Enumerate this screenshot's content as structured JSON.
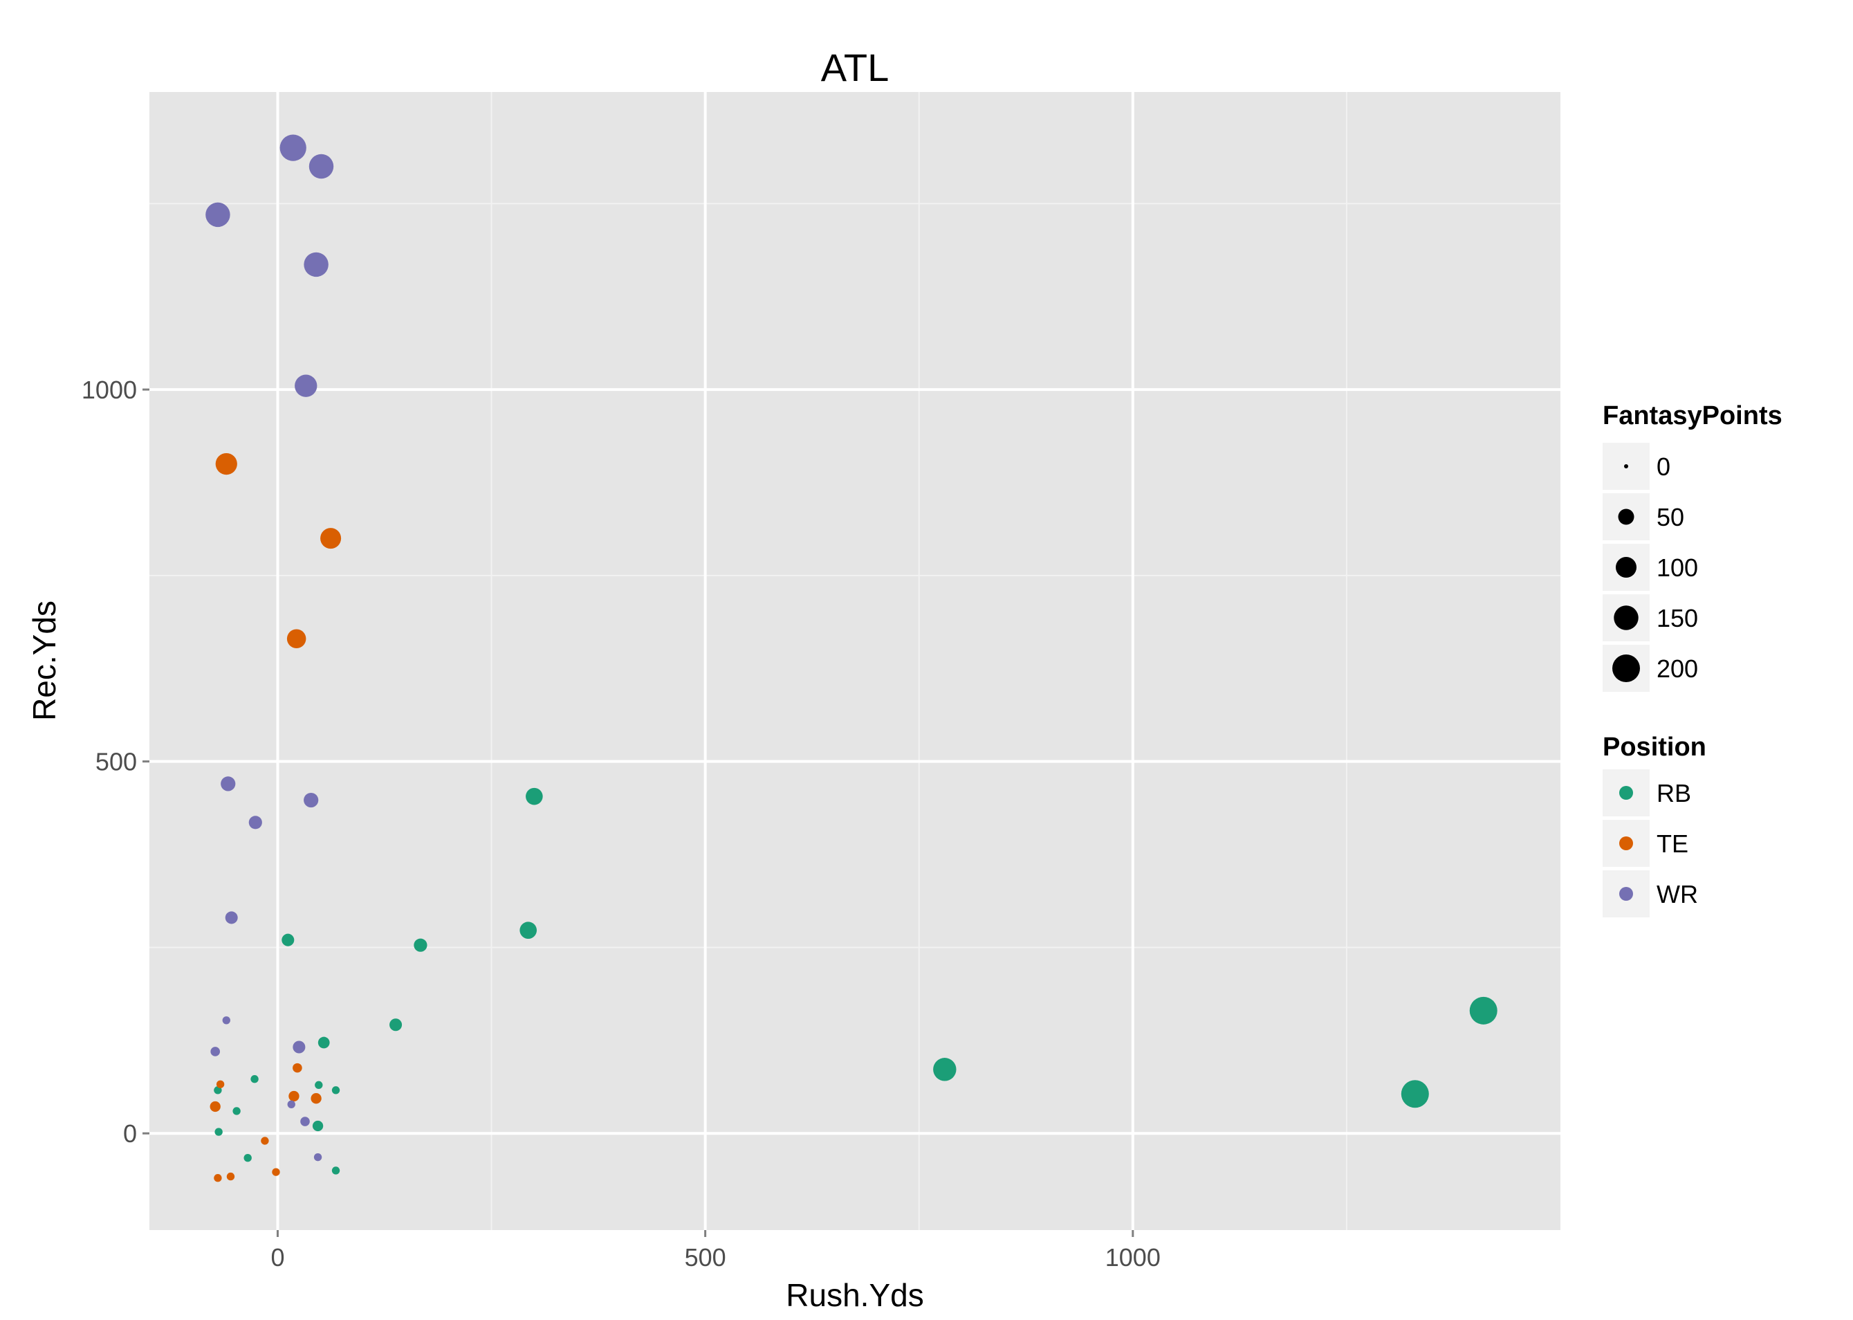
{
  "chart_data": {
    "type": "scatter",
    "title": "ATL",
    "xlabel": "Rush.Yds",
    "ylabel": "Rec.Yds",
    "xlim": [
      -150,
      1500
    ],
    "ylim": [
      -130,
      1400
    ],
    "x_ticks": [
      0,
      500,
      1000
    ],
    "y_ticks": [
      0,
      500,
      1000
    ],
    "x_minor": [
      250,
      750,
      1250
    ],
    "y_minor": [
      250,
      750,
      1250
    ],
    "grid": true,
    "legend_position": "right",
    "size_legend": {
      "title": "FantasyPoints",
      "items": [
        {
          "label": "0",
          "value": 0
        },
        {
          "label": "50",
          "value": 50
        },
        {
          "label": "100",
          "value": 100
        },
        {
          "label": "150",
          "value": 150
        },
        {
          "label": "200",
          "value": 200
        }
      ]
    },
    "color_legend": {
      "title": "Position",
      "items": [
        {
          "label": "RB",
          "color": "#1b9e77"
        },
        {
          "label": "TE",
          "color": "#d95f02"
        },
        {
          "label": "WR",
          "color": "#7570b3"
        }
      ]
    },
    "series": [
      {
        "name": "RB",
        "color": "#1b9e77",
        "points": [
          {
            "x": 1410,
            "y": 165,
            "size": 200
          },
          {
            "x": 1330,
            "y": 53,
            "size": 200
          },
          {
            "x": 780,
            "y": 86,
            "size": 130
          },
          {
            "x": 300,
            "y": 453,
            "size": 60
          },
          {
            "x": 293,
            "y": 273,
            "size": 60
          },
          {
            "x": 167,
            "y": 253,
            "size": 30
          },
          {
            "x": 138,
            "y": 146,
            "size": 25
          },
          {
            "x": 12,
            "y": 260,
            "size": 25
          },
          {
            "x": 54,
            "y": 122,
            "size": 20
          },
          {
            "x": -27,
            "y": 73,
            "size": 5
          },
          {
            "x": 48,
            "y": 65,
            "size": 5
          },
          {
            "x": 68,
            "y": 58,
            "size": 5
          },
          {
            "x": -70,
            "y": 58,
            "size": 5
          },
          {
            "x": -48,
            "y": 30,
            "size": 5
          },
          {
            "x": 47,
            "y": 10,
            "size": 15
          },
          {
            "x": -69,
            "y": 2,
            "size": 5
          },
          {
            "x": -35,
            "y": -33,
            "size": 5
          },
          {
            "x": 68,
            "y": -50,
            "size": 5
          }
        ]
      },
      {
        "name": "TE",
        "color": "#d95f02",
        "points": [
          {
            "x": -60,
            "y": 900,
            "size": 110
          },
          {
            "x": 62,
            "y": 800,
            "size": 100
          },
          {
            "x": 22,
            "y": 665,
            "size": 80
          },
          {
            "x": 23,
            "y": 88,
            "size": 10
          },
          {
            "x": -67,
            "y": 66,
            "size": 5
          },
          {
            "x": 19,
            "y": 50,
            "size": 15
          },
          {
            "x": 45,
            "y": 47,
            "size": 15
          },
          {
            "x": -73,
            "y": 36,
            "size": 15
          },
          {
            "x": -15,
            "y": -10,
            "size": 5
          },
          {
            "x": -2,
            "y": -52,
            "size": 5
          },
          {
            "x": -55,
            "y": -58,
            "size": 5
          },
          {
            "x": -70,
            "y": -60,
            "size": 5
          }
        ]
      },
      {
        "name": "WR",
        "color": "#7570b3",
        "points": [
          {
            "x": 18,
            "y": 1325,
            "size": 180
          },
          {
            "x": 51,
            "y": 1300,
            "size": 150
          },
          {
            "x": -70,
            "y": 1235,
            "size": 150
          },
          {
            "x": 45,
            "y": 1168,
            "size": 150
          },
          {
            "x": 33,
            "y": 1005,
            "size": 120
          },
          {
            "x": -58,
            "y": 470,
            "size": 40
          },
          {
            "x": 39,
            "y": 448,
            "size": 40
          },
          {
            "x": -26,
            "y": 418,
            "size": 30
          },
          {
            "x": -54,
            "y": 290,
            "size": 25
          },
          {
            "x": 25,
            "y": 116,
            "size": 25
          },
          {
            "x": -60,
            "y": 152,
            "size": 5
          },
          {
            "x": -73,
            "y": 110,
            "size": 10
          },
          {
            "x": 32,
            "y": 16,
            "size": 10
          },
          {
            "x": 47,
            "y": -32,
            "size": 5
          },
          {
            "x": 16,
            "y": 39,
            "size": 5
          }
        ]
      }
    ]
  }
}
